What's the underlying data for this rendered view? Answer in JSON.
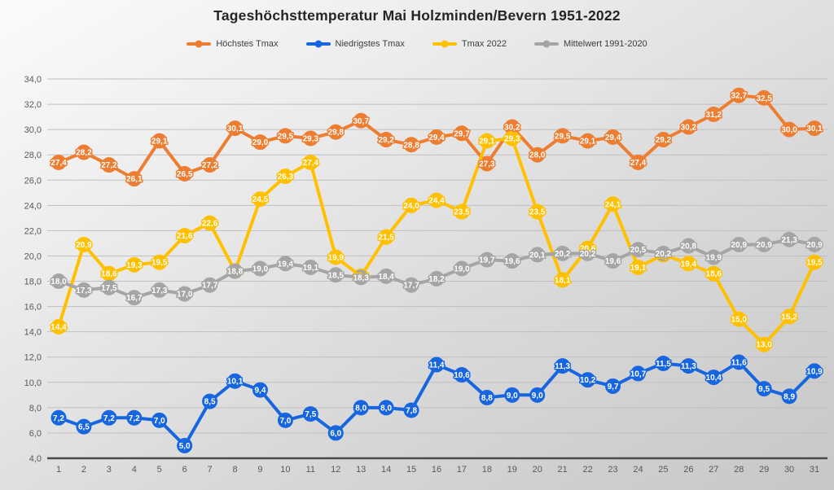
{
  "title": "Tageshöchsttemperatur Mai Holzminden/Bevern 1951-2022",
  "chart_data": {
    "type": "line",
    "title": "Tageshöchsttemperatur Mai Holzminden/Bevern 1951-2022",
    "legend_position": "top",
    "grid": true,
    "decimal_separator": ",",
    "categories": [
      "1",
      "2",
      "3",
      "4",
      "5",
      "6",
      "7",
      "8",
      "9",
      "10",
      "11",
      "12",
      "13",
      "14",
      "15",
      "16",
      "17",
      "18",
      "19",
      "20",
      "21",
      "22",
      "23",
      "24",
      "25",
      "26",
      "27",
      "28",
      "29",
      "30",
      "31"
    ],
    "ylim": [
      4,
      34
    ],
    "ytick_step": 2,
    "yticks": [
      "4,0",
      "6,0",
      "8,0",
      "10,0",
      "12,0",
      "14,0",
      "16,0",
      "18,0",
      "20,0",
      "22,0",
      "24,0",
      "26,0",
      "28,0",
      "30,0",
      "32,0",
      "34,0"
    ],
    "series": [
      {
        "name": "Höchstes Tmax",
        "color": "#ED7D31",
        "values": [
          27.4,
          28.2,
          27.2,
          26.1,
          29.1,
          26.5,
          27.2,
          30.1,
          29.0,
          29.5,
          29.3,
          29.8,
          30.7,
          29.2,
          28.8,
          29.4,
          29.7,
          27.3,
          30.2,
          28.0,
          29.5,
          29.1,
          29.4,
          27.4,
          29.2,
          30.2,
          31.2,
          32.7,
          32.5,
          30.0,
          30.1
        ]
      },
      {
        "name": "Niedrigstes Tmax",
        "color": "#1766DF",
        "values": [
          7.2,
          6.5,
          7.2,
          7.2,
          7.0,
          5.0,
          8.5,
          10.1,
          9.4,
          7.0,
          7.5,
          6.0,
          8.0,
          8.0,
          7.8,
          11.4,
          10.6,
          8.8,
          9.0,
          9.0,
          11.3,
          10.2,
          9.7,
          10.7,
          11.5,
          11.3,
          10.4,
          11.6,
          9.5,
          8.9,
          10.9
        ]
      },
      {
        "name": "Tmax 2022",
        "color": "#FFC000",
        "values": [
          14.4,
          20.9,
          18.6,
          19.3,
          19.5,
          21.6,
          22.6,
          18.8,
          24.5,
          26.3,
          27.4,
          19.9,
          18.4,
          21.5,
          24.0,
          24.4,
          23.5,
          29.1,
          29.3,
          23.5,
          18.1,
          20.6,
          24.1,
          19.1,
          20.1,
          19.4,
          18.6,
          15.0,
          13.0,
          15.2,
          19.5
        ]
      },
      {
        "name": "Mittelwert 1991-2020",
        "color": "#A5A5A5",
        "values": [
          18.0,
          17.3,
          17.5,
          16.7,
          17.3,
          17.0,
          17.7,
          18.8,
          19.0,
          19.4,
          19.1,
          18.5,
          18.3,
          18.4,
          17.7,
          18.2,
          19.0,
          19.7,
          19.6,
          20.1,
          20.2,
          20.2,
          19.6,
          20.5,
          20.2,
          20.8,
          19.9,
          20.9,
          20.9,
          21.3,
          20.9
        ]
      }
    ],
    "colors": {
      "gridline": "#BFBFBF",
      "axis_line": "#4A4A4A",
      "tick_text": "#595959",
      "title_text": "#252525"
    }
  }
}
